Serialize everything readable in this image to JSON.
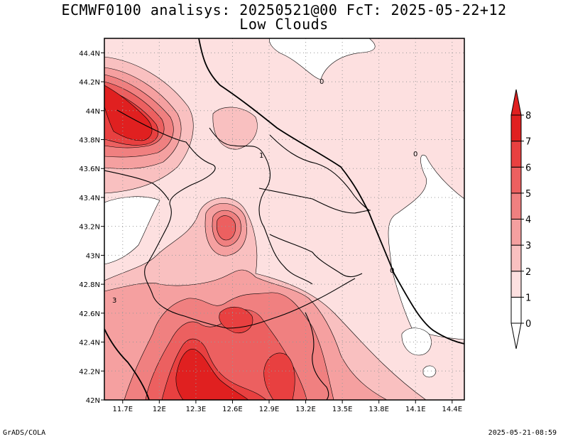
{
  "title_line1": "ECMWF0100 analisys: 20250521@00 FcT: 2025-05-22+12",
  "title_line2": "Low Clouds",
  "footer_left": "GrADS/COLA",
  "footer_right": "2025-05-21-08:59",
  "chart_data": {
    "type": "contour-map",
    "field": "Low Clouds",
    "units_levels": [
      0,
      1,
      2,
      3,
      4,
      5,
      6,
      7,
      8
    ],
    "xlim": [
      11.55,
      14.5
    ],
    "ylim": [
      42.0,
      44.5
    ],
    "x_ticks": [
      11.7,
      12.0,
      12.3,
      12.6,
      12.9,
      13.2,
      13.5,
      13.8,
      14.1,
      14.4
    ],
    "x_tick_labels": [
      "11.7E",
      "12E",
      "12.3E",
      "12.6E",
      "12.9E",
      "13.2E",
      "13.5E",
      "13.8E",
      "14.1E",
      "14.4E"
    ],
    "y_ticks": [
      42.0,
      42.2,
      42.4,
      42.6,
      42.8,
      43.0,
      43.2,
      43.4,
      43.6,
      43.8,
      44.0,
      44.2,
      44.4
    ],
    "y_tick_labels": [
      "42N",
      "42.2N",
      "42.4N",
      "42.6N",
      "42.8N",
      "43N",
      "43.2N",
      "43.4N",
      "43.6N",
      "43.8N",
      "44N",
      "44.2N",
      "44.4N"
    ],
    "grid": true,
    "colorbar": {
      "levels": [
        0,
        1,
        2,
        3,
        4,
        5,
        6,
        7,
        8
      ],
      "labels": [
        "0",
        "1",
        "2",
        "3",
        "4",
        "5",
        "6",
        "7",
        "8"
      ],
      "colors": [
        "#ffffff",
        "#fde0e0",
        "#f9c0c0",
        "#f5a0a0",
        "#f08080",
        "#ec6060",
        "#e84040",
        "#e02020"
      ]
    },
    "contour_labels": [
      "0",
      "0",
      "1",
      "0",
      "3"
    ],
    "features": [
      {
        "label": "max near 44.0N 11.8E",
        "lon": 11.85,
        "lat": 43.9,
        "value": 7.5
      },
      {
        "label": "max near 43.2N 12.5E",
        "lon": 12.5,
        "lat": 43.2,
        "value": 5.5
      },
      {
        "label": "max near 42.55N 12.6E",
        "lon": 12.6,
        "lat": 42.55,
        "value": 5.5
      },
      {
        "label": "max near 42.15N 12.4E",
        "lon": 12.4,
        "lat": 42.15,
        "value": 6.5
      },
      {
        "label": "max near 42.25N 13.0E",
        "lon": 13.0,
        "lat": 42.25,
        "value": 6.5
      },
      {
        "label": "clear near 44.35N 13.5E",
        "lon": 13.6,
        "lat": 44.35,
        "value": 0
      },
      {
        "label": "clear near 43.1N 14.2E",
        "lon": 14.2,
        "lat": 43.1,
        "value": 0
      }
    ]
  }
}
